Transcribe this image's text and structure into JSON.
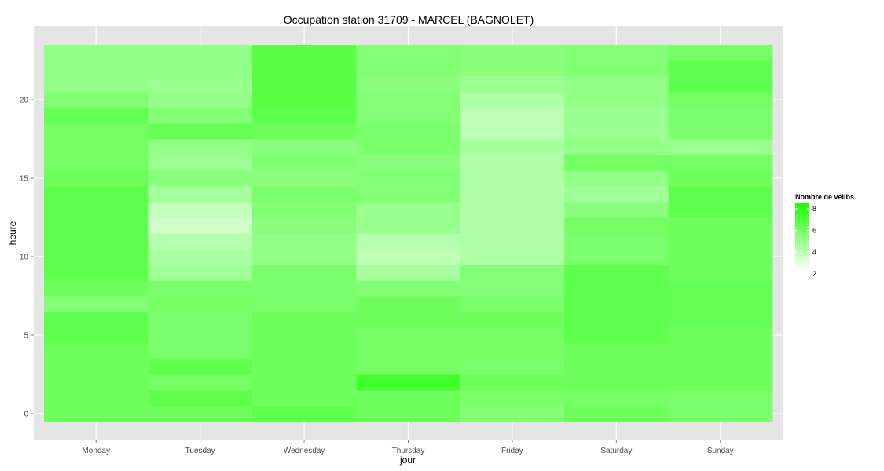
{
  "chart_data": {
    "type": "heatmap",
    "title": "Occupation station 31709 - MARCEL (BAGNOLET)",
    "xlabel": "jour",
    "ylabel": "heure",
    "x_categories": [
      "Monday",
      "Tuesday",
      "Wednesday",
      "Thursday",
      "Friday",
      "Saturday",
      "Sunday"
    ],
    "y_values": [
      0,
      1,
      2,
      3,
      4,
      5,
      6,
      7,
      8,
      9,
      10,
      11,
      12,
      13,
      14,
      15,
      16,
      17,
      18,
      19,
      20,
      21,
      22,
      23
    ],
    "y_ticks": [
      0,
      5,
      10,
      15,
      20
    ],
    "ylim": [
      -0.5,
      23.5
    ],
    "values": [
      [
        6.2,
        6.2,
        6.2,
        6.2,
        6.2,
        6.6,
        6.6,
        5.6,
        6.2,
        6.6,
        6.6,
        6.6,
        6.6,
        6.6,
        6.6,
        6.2,
        6.0,
        6.0,
        6.0,
        6.4,
        5.6,
        5.2,
        5.2,
        5.2
      ],
      [
        6.2,
        6.6,
        6.0,
        6.6,
        5.8,
        5.8,
        5.8,
        6.0,
        5.8,
        4.8,
        4.5,
        4.2,
        3.5,
        3.8,
        4.6,
        5.4,
        5.0,
        5.2,
        6.4,
        5.6,
        5.2,
        5.0,
        5.2,
        5.2
      ],
      [
        6.6,
        6.2,
        6.2,
        6.2,
        6.2,
        6.2,
        6.2,
        5.8,
        5.8,
        5.8,
        5.2,
        5.2,
        5.4,
        5.6,
        5.8,
        5.4,
        5.6,
        5.4,
        6.2,
        6.6,
        6.8,
        6.8,
        6.8,
        6.8
      ],
      [
        6.2,
        6.2,
        7.4,
        6.0,
        6.0,
        6.0,
        6.2,
        6.2,
        5.6,
        4.6,
        4.0,
        4.2,
        5.0,
        5.0,
        5.6,
        5.6,
        5.4,
        5.8,
        5.8,
        5.6,
        5.6,
        5.4,
        5.6,
        5.6
      ],
      [
        5.6,
        5.8,
        6.2,
        5.8,
        6.0,
        6.0,
        6.2,
        5.8,
        5.6,
        5.6,
        4.4,
        4.4,
        4.4,
        4.4,
        4.4,
        4.4,
        4.4,
        4.6,
        4.0,
        4.0,
        4.4,
        5.0,
        5.4,
        5.4
      ],
      [
        6.2,
        6.0,
        6.2,
        6.2,
        6.2,
        6.6,
        6.6,
        6.6,
        6.6,
        6.6,
        5.8,
        5.8,
        6.0,
        5.4,
        4.8,
        5.2,
        6.0,
        5.2,
        5.0,
        5.0,
        5.2,
        5.2,
        5.6,
        5.6
      ],
      [
        5.8,
        5.8,
        6.2,
        6.2,
        6.2,
        6.2,
        6.4,
        6.4,
        6.4,
        6.2,
        6.2,
        6.2,
        6.2,
        6.6,
        6.6,
        6.2,
        6.0,
        5.0,
        5.8,
        5.8,
        6.0,
        6.6,
        6.6,
        6.0
      ]
    ],
    "legend": {
      "title": "Nombre de vélibs",
      "min": 2.2,
      "max": 8.5,
      "ticks": [
        2,
        4,
        6,
        8
      ],
      "low_color": "#ffffff",
      "high_color": "#1aff00"
    },
    "grid": true,
    "panel_background": "#e5e5e5",
    "grid_color": "#ffffff"
  }
}
